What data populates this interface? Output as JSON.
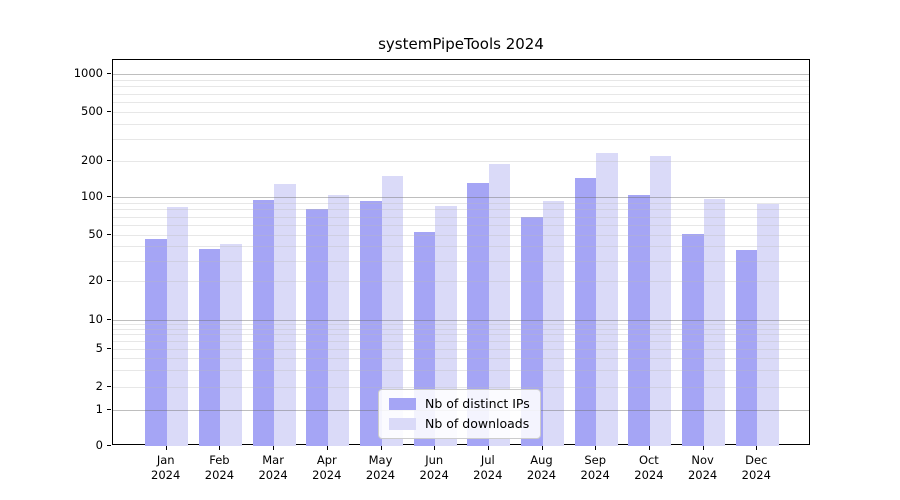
{
  "title": "systemPipeTools 2024",
  "legend": {
    "items": [
      {
        "label": "Nb of distinct IPs",
        "color": "#a5a5f5"
      },
      {
        "label": "Nb of downloads",
        "color": "#dadaf8"
      }
    ]
  },
  "y_axis": {
    "tick_labels": [
      "0",
      "1",
      "2",
      "5",
      "10",
      "20",
      "50",
      "100",
      "200",
      "500",
      "1000"
    ]
  },
  "x_axis": {
    "year_label": "2024",
    "month_labels": [
      "Jan",
      "Feb",
      "Mar",
      "Apr",
      "May",
      "Jun",
      "Jul",
      "Aug",
      "Sep",
      "Oct",
      "Nov",
      "Dec"
    ]
  },
  "chart_data": {
    "type": "bar",
    "title": "systemPipeTools 2024",
    "categories": [
      "Jan 2024",
      "Feb 2024",
      "Mar 2024",
      "Apr 2024",
      "May 2024",
      "Jun 2024",
      "Jul 2024",
      "Aug 2024",
      "Sep 2024",
      "Oct 2024",
      "Nov 2024",
      "Dec 2024"
    ],
    "series": [
      {
        "name": "Nb of distinct IPs",
        "color": "#a5a5f5",
        "values": [
          46,
          38,
          95,
          80,
          93,
          53,
          132,
          70,
          145,
          105,
          51,
          37
        ]
      },
      {
        "name": "Nb of downloads",
        "color": "#dadaf8",
        "values": [
          84,
          42,
          128,
          105,
          152,
          85,
          188,
          93,
          233,
          219,
          97,
          88
        ]
      }
    ],
    "xlabel": "",
    "ylabel": "",
    "yscale": "log-like (0,1,2,5,10,20,50,100,200,500,1000)",
    "yticks": [
      0,
      1,
      2,
      5,
      10,
      20,
      50,
      100,
      200,
      500,
      1000
    ],
    "ylim": [
      0,
      1300
    ],
    "grid": true,
    "legend_position": "lower center"
  }
}
